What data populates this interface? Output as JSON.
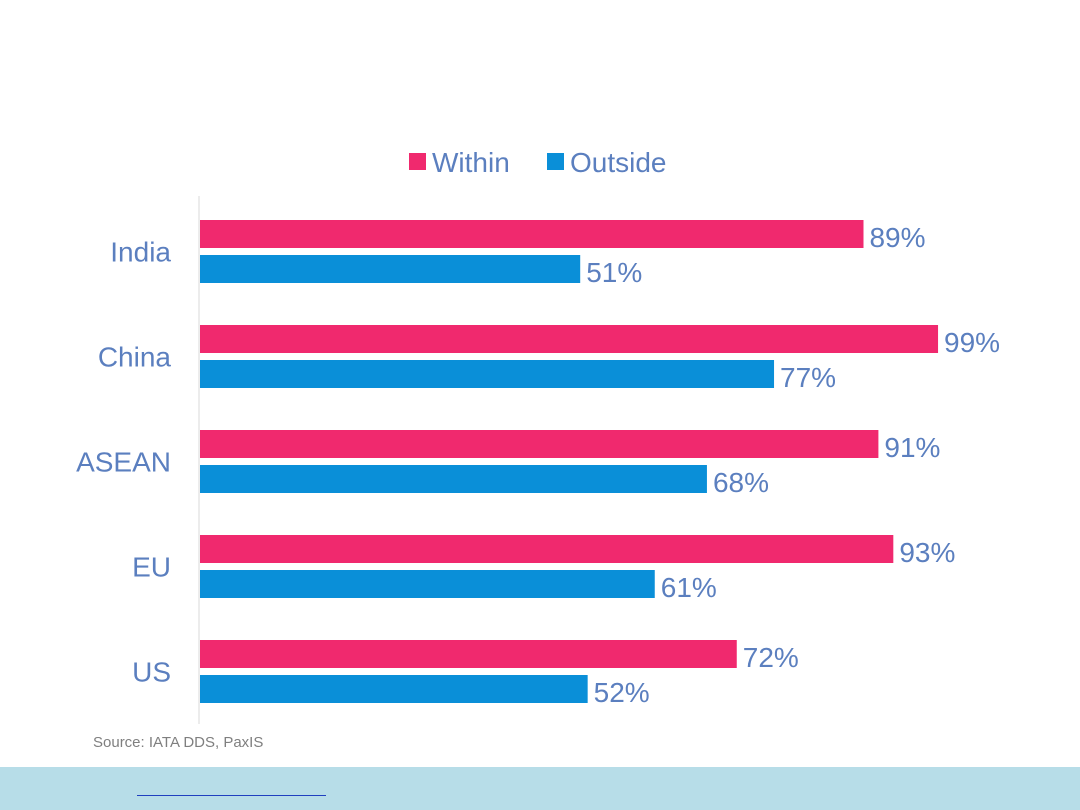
{
  "chart_data": {
    "type": "bar",
    "orientation": "horizontal",
    "categories": [
      "India",
      "China",
      "ASEAN",
      "EU",
      "US"
    ],
    "series": [
      {
        "name": "Within",
        "values": [
          89,
          99,
          91,
          93,
          72
        ]
      },
      {
        "name": "Outside",
        "values": [
          51,
          77,
          68,
          61,
          52
        ]
      }
    ],
    "xlim": [
      0,
      100
    ],
    "value_suffix": "%",
    "legend_position": "top-center",
    "grid": false
  },
  "colors": {
    "within": "#f0296e",
    "outside": "#0a8fd8",
    "text": "#5b7fbf",
    "axis": "#d9d9d9",
    "footer": "#b7dde8"
  },
  "source": "Source: IATA DDS, PaxIS"
}
